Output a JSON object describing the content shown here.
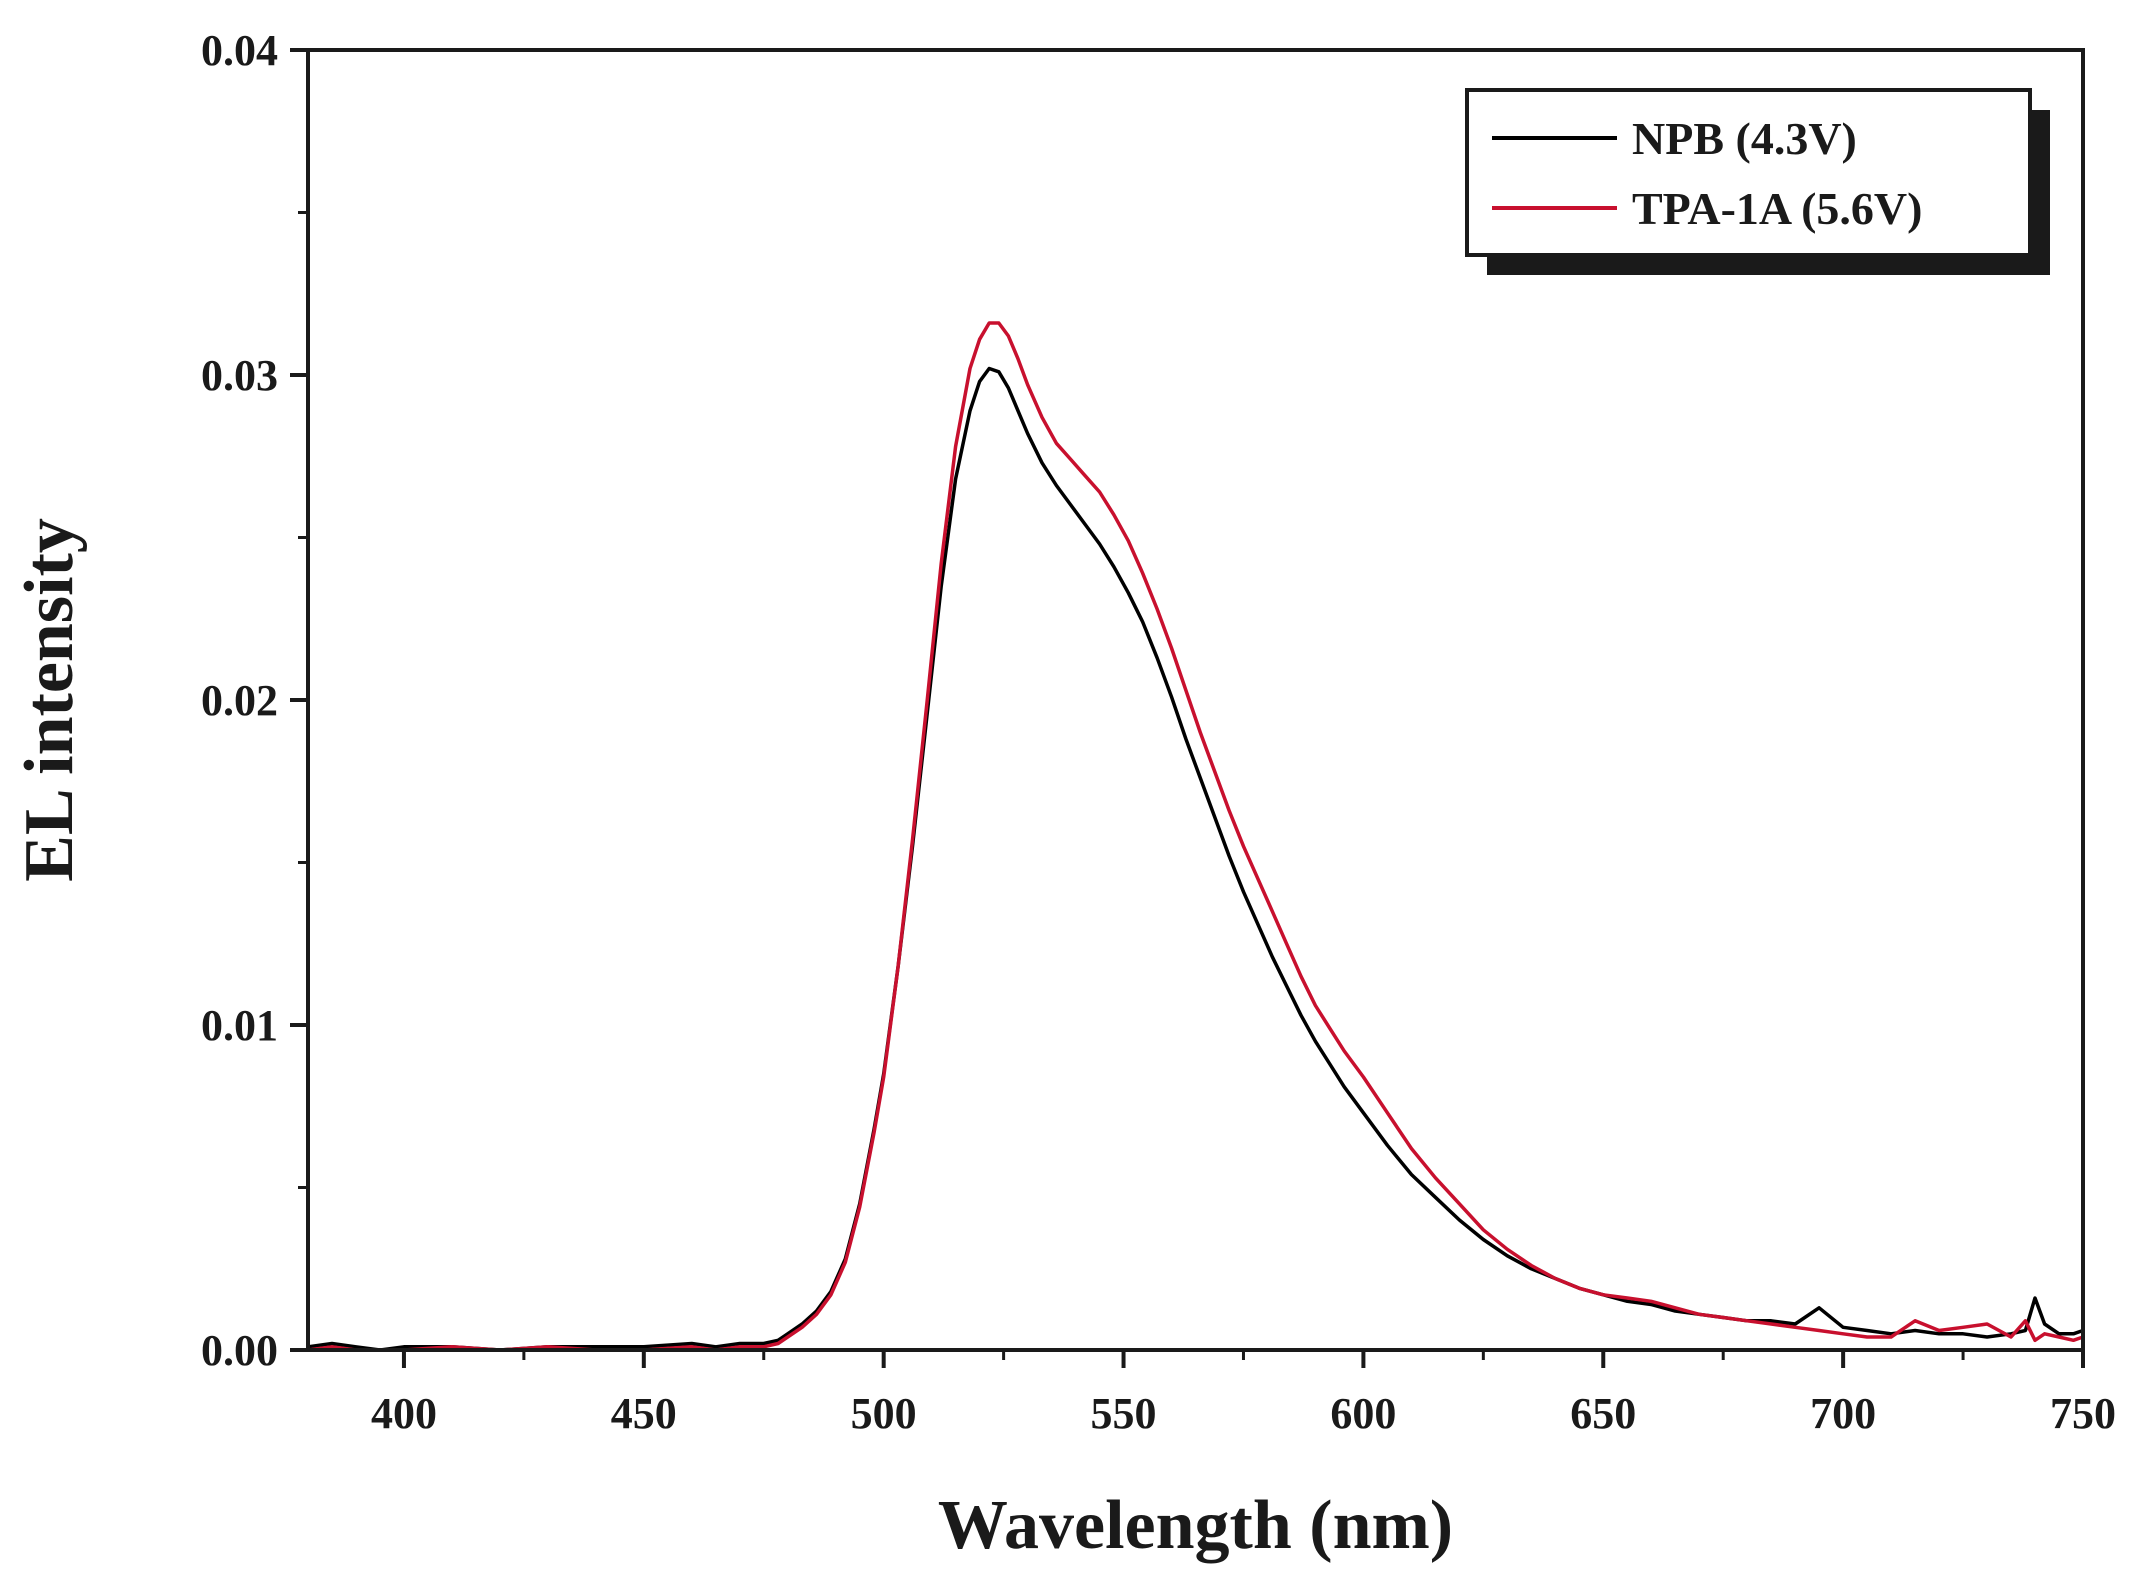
{
  "chart_data": {
    "type": "line",
    "xlabel": "Wavelength (nm)",
    "ylabel": "EL intensity",
    "xlim": [
      380,
      750
    ],
    "ylim": [
      0,
      0.04
    ],
    "x_ticks": [
      400,
      450,
      500,
      550,
      600,
      650,
      700,
      750
    ],
    "y_ticks": [
      "0.00",
      "0.01",
      "0.02",
      "0.03",
      "0.04"
    ],
    "y_tick_values": [
      0,
      0.01,
      0.02,
      0.03,
      0.04
    ],
    "grid": false,
    "legend_position": "top-right",
    "series": [
      {
        "name": "NPB (4.3V)",
        "color": "#000000",
        "x": [
          380,
          385,
          390,
          395,
          400,
          410,
          420,
          430,
          440,
          450,
          460,
          465,
          470,
          475,
          478,
          480,
          483,
          486,
          489,
          492,
          495,
          498,
          500,
          503,
          506,
          509,
          512,
          515,
          518,
          520,
          522,
          524,
          526,
          528,
          530,
          533,
          536,
          539,
          542,
          545,
          548,
          551,
          554,
          557,
          560,
          563,
          566,
          569,
          572,
          575,
          578,
          581,
          584,
          587,
          590,
          593,
          596,
          600,
          605,
          610,
          615,
          620,
          625,
          630,
          635,
          640,
          645,
          650,
          655,
          660,
          665,
          670,
          675,
          680,
          685,
          690,
          695,
          700,
          705,
          710,
          715,
          720,
          725,
          730,
          735,
          738,
          740,
          742,
          745,
          748,
          750
        ],
        "y": [
          0.0001,
          0.0002,
          0.0001,
          0.0,
          0.0001,
          0.0001,
          0.0,
          0.0001,
          0.0001,
          0.0001,
          0.0002,
          0.0001,
          0.0002,
          0.0002,
          0.0003,
          0.0005,
          0.0008,
          0.0012,
          0.0018,
          0.0028,
          0.0045,
          0.0068,
          0.0085,
          0.0118,
          0.0155,
          0.0195,
          0.0235,
          0.0268,
          0.0289,
          0.0298,
          0.0302,
          0.0301,
          0.0296,
          0.0289,
          0.0282,
          0.0273,
          0.0266,
          0.026,
          0.0254,
          0.0248,
          0.0241,
          0.0233,
          0.0224,
          0.0213,
          0.0201,
          0.0188,
          0.0176,
          0.0164,
          0.0152,
          0.0141,
          0.0131,
          0.0121,
          0.0112,
          0.0103,
          0.0095,
          0.0088,
          0.0081,
          0.0073,
          0.0063,
          0.0054,
          0.0047,
          0.004,
          0.0034,
          0.0029,
          0.0025,
          0.0022,
          0.0019,
          0.0017,
          0.0015,
          0.0014,
          0.0012,
          0.0011,
          0.001,
          0.0009,
          0.0009,
          0.0008,
          0.0013,
          0.0007,
          0.0006,
          0.0005,
          0.0006,
          0.0005,
          0.0005,
          0.0004,
          0.0005,
          0.0006,
          0.0016,
          0.0008,
          0.0005,
          0.0005,
          0.0006
        ]
      },
      {
        "name": "TPA-1A (5.6V)",
        "color": "#c8102e",
        "x": [
          380,
          385,
          390,
          395,
          400,
          410,
          420,
          430,
          440,
          450,
          460,
          465,
          470,
          475,
          478,
          480,
          483,
          486,
          489,
          492,
          495,
          498,
          500,
          503,
          506,
          509,
          512,
          515,
          518,
          520,
          522,
          524,
          526,
          528,
          530,
          533,
          536,
          539,
          542,
          545,
          548,
          551,
          554,
          557,
          560,
          563,
          566,
          569,
          572,
          575,
          578,
          581,
          584,
          587,
          590,
          593,
          596,
          600,
          605,
          610,
          615,
          620,
          625,
          630,
          635,
          640,
          645,
          650,
          655,
          660,
          665,
          670,
          675,
          680,
          685,
          690,
          695,
          700,
          705,
          710,
          715,
          720,
          725,
          730,
          735,
          738,
          740,
          742,
          745,
          748,
          750
        ],
        "y": [
          0.0,
          0.0001,
          0.0,
          0.0,
          0.0,
          0.0001,
          0.0,
          0.0001,
          0.0,
          0.0,
          0.0001,
          0.0,
          0.0001,
          0.0001,
          0.0002,
          0.0004,
          0.0007,
          0.0011,
          0.0017,
          0.0027,
          0.0044,
          0.0067,
          0.0084,
          0.0118,
          0.0157,
          0.0199,
          0.0242,
          0.0278,
          0.0302,
          0.0311,
          0.0316,
          0.0316,
          0.0312,
          0.0305,
          0.0297,
          0.0287,
          0.0279,
          0.0274,
          0.0269,
          0.0264,
          0.0257,
          0.0249,
          0.0239,
          0.0228,
          0.0216,
          0.0203,
          0.019,
          0.0178,
          0.0166,
          0.0155,
          0.0145,
          0.0135,
          0.0125,
          0.0115,
          0.0106,
          0.0099,
          0.0092,
          0.0084,
          0.0073,
          0.0062,
          0.0053,
          0.0045,
          0.0037,
          0.0031,
          0.0026,
          0.0022,
          0.0019,
          0.0017,
          0.0016,
          0.0015,
          0.0013,
          0.0011,
          0.001,
          0.0009,
          0.0008,
          0.0007,
          0.0006,
          0.0005,
          0.0004,
          0.0004,
          0.0009,
          0.0006,
          0.0007,
          0.0008,
          0.0004,
          0.0009,
          0.0003,
          0.0005,
          0.0004,
          0.0003,
          0.0004
        ]
      }
    ]
  }
}
